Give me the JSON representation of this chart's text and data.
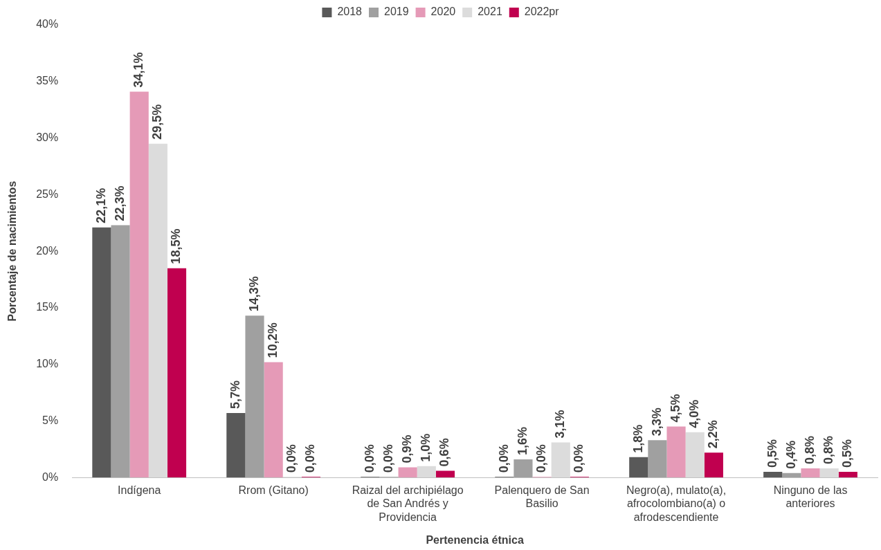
{
  "chart_data": {
    "type": "bar",
    "xlabel": "Pertenencia étnica",
    "ylabel": "Porcentaje de nacimientos",
    "categories": [
      "Indígena",
      "Rrom (Gitano)",
      "Raizal del archipiélago de San Andrés y Providencia",
      "Palenquero de San Basilio",
      "Negro(a), mulato(a), afrocolombiano(a) o afrodescendiente",
      "Ninguno de las anteriores"
    ],
    "series": [
      {
        "name": "2018",
        "color": "#595959",
        "values": [
          22.1,
          5.7,
          0.0,
          0.0,
          1.8,
          0.5
        ],
        "value_labels": [
          "22,1%",
          "5,7%",
          "0,0%",
          "0,0%",
          "1,8%",
          "0,5%"
        ]
      },
      {
        "name": "2019",
        "color": "#a0a0a0",
        "values": [
          22.3,
          14.3,
          0.0,
          1.6,
          3.3,
          0.4
        ],
        "value_labels": [
          "22,3%",
          "14,3%",
          "0,0%",
          "1,6%",
          "3,3%",
          "0,4%"
        ]
      },
      {
        "name": "2020",
        "color": "#e59ab7",
        "values": [
          34.1,
          10.2,
          0.9,
          0.0,
          4.5,
          0.8
        ],
        "value_labels": [
          "34,1%",
          "10,2%",
          "0,9%",
          "0,0%",
          "4,5%",
          "0,8%"
        ]
      },
      {
        "name": "2021",
        "color": "#dcdcdc",
        "values": [
          29.5,
          0.0,
          1.0,
          3.1,
          4.0,
          0.8
        ],
        "value_labels": [
          "29,5%",
          "0,0%",
          "1,0%",
          "3,1%",
          "4,0%",
          "0,8%"
        ]
      },
      {
        "name": "2022pr",
        "color": "#c0004f",
        "values": [
          18.5,
          0.0,
          0.6,
          0.0,
          2.2,
          0.5
        ],
        "value_labels": [
          "18,5%",
          "0,0%",
          "0,6%",
          "0,0%",
          "2,2%",
          "0,5%"
        ]
      }
    ],
    "ylim": [
      0,
      40
    ],
    "yticks": [
      {
        "value": 0,
        "label": "0%"
      },
      {
        "value": 5,
        "label": "5%"
      },
      {
        "value": 10,
        "label": "10%"
      },
      {
        "value": 15,
        "label": "15%"
      },
      {
        "value": 20,
        "label": "20%"
      },
      {
        "value": 25,
        "label": "25%"
      },
      {
        "value": 30,
        "label": "30%"
      },
      {
        "value": 35,
        "label": "35%"
      },
      {
        "value": 40,
        "label": "40%"
      }
    ],
    "grid": false,
    "legend": "top"
  }
}
